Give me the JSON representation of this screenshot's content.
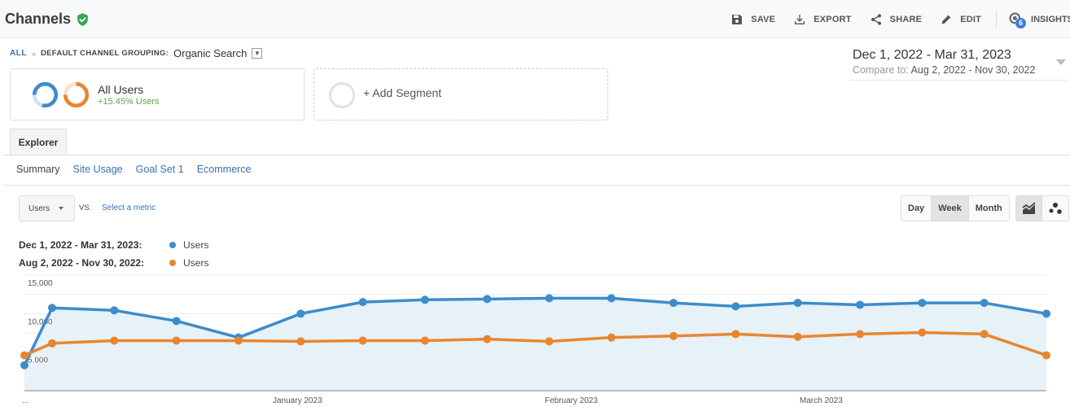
{
  "header": {
    "title": "Channels",
    "verified_icon": "shield-check-icon",
    "actions": [
      {
        "label": "SAVE",
        "icon": "save-icon"
      },
      {
        "label": "EXPORT",
        "icon": "download-icon"
      },
      {
        "label": "SHARE",
        "icon": "share-icon"
      },
      {
        "label": "EDIT",
        "icon": "pencil-icon"
      }
    ],
    "insights": {
      "label": "INSIGHTS",
      "badge": "6",
      "icon": "insights-icon"
    }
  },
  "breadcrumb": {
    "all": "ALL",
    "separator": "»",
    "group_label": "DEFAULT CHANNEL GROUPING:",
    "group_value": "Organic Search"
  },
  "date_range": {
    "main": "Dec 1, 2022 - Mar 31, 2023",
    "compare_label": "Compare to:",
    "compare_value": "Aug 2, 2022 - Nov 30, 2022"
  },
  "segments": {
    "active": {
      "title": "All Users",
      "subtitle": "+15.45% Users"
    },
    "add_label": "+ Add Segment"
  },
  "tabs": {
    "main": "Explorer",
    "sub": [
      {
        "label": "Summary",
        "active": true
      },
      {
        "label": "Site Usage",
        "active": false
      },
      {
        "label": "Goal Set 1",
        "active": false
      },
      {
        "label": "Ecommerce",
        "active": false
      }
    ]
  },
  "controls": {
    "metric": "Users",
    "vs": "VS.",
    "select_metric": "Select a metric",
    "periods": [
      {
        "label": "Day",
        "active": false
      },
      {
        "label": "Week",
        "active": true
      },
      {
        "label": "Month",
        "active": false
      }
    ],
    "views": [
      {
        "icon": "line-chart-icon",
        "active": true
      },
      {
        "icon": "motion-chart-icon",
        "active": false
      }
    ]
  },
  "legend": [
    {
      "range": "Dec 1, 2022 - Mar 31, 2023:",
      "metric": "Users",
      "color": "#3d8ccb"
    },
    {
      "range": "Aug 2, 2022 - Nov 30, 2022:",
      "metric": "Users",
      "color": "#e8862f"
    }
  ],
  "colors": {
    "primary": "#3d8ccb",
    "compare": "#e8862f",
    "area_fill": "#e6f1f8",
    "link": "#3a6fb0",
    "positive": "#5fa34a"
  },
  "chart_data": {
    "type": "line",
    "title": "",
    "xlabel": "",
    "ylabel": "Users",
    "ylim": [
      0,
      15000
    ],
    "y_ticks": [
      "5,000",
      "10,000",
      "15,000"
    ],
    "x_tick_labels": [
      "...",
      "January 2023",
      "February 2023",
      "March 2023"
    ],
    "grid": true,
    "legend_position": "top-left",
    "x": [
      "Dec 1",
      "Dec 4",
      "Dec 11",
      "Dec 18",
      "Dec 25",
      "Jan 1",
      "Jan 8",
      "Jan 15",
      "Jan 22",
      "Jan 29",
      "Feb 5",
      "Feb 12",
      "Feb 19",
      "Feb 26",
      "Mar 5",
      "Mar 12",
      "Mar 19",
      "Mar 26"
    ],
    "series": [
      {
        "name": "Users (Dec 1, 2022 - Mar 31, 2023)",
        "color": "#3d8ccb",
        "filled": true,
        "values": [
          3300,
          10750,
          10430,
          9050,
          6900,
          10000,
          11500,
          11800,
          11900,
          12000,
          12000,
          11400,
          10950,
          11400,
          11150,
          11400,
          11400,
          10000
        ]
      },
      {
        "name": "Users (Aug 2, 2022 - Nov 30, 2022)",
        "color": "#e8862f",
        "filled": false,
        "values": [
          4600,
          6150,
          6500,
          6500,
          6500,
          6400,
          6500,
          6500,
          6700,
          6400,
          6900,
          7100,
          7350,
          7000,
          7350,
          7550,
          7350,
          4600
        ]
      }
    ]
  }
}
